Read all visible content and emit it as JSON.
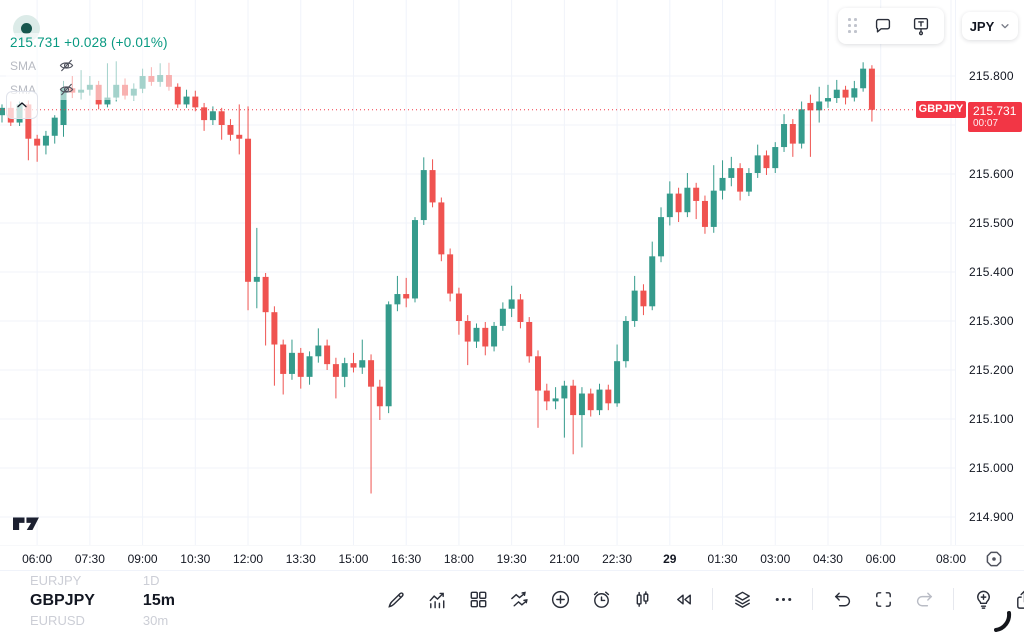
{
  "header": {
    "status_indicator": "market-open",
    "legend": {
      "price": "215.731",
      "change": "+0.028",
      "change_pct": "(+0.01%)",
      "price_color": "#089981",
      "indicators": [
        {
          "label": "SMA",
          "hidden": true
        },
        {
          "label": "SMA",
          "hidden": true
        }
      ]
    },
    "floating_toolbar": {
      "buttons": [
        "drag-handle",
        "comment",
        "text-note"
      ]
    },
    "currency_selector": {
      "value": "JPY"
    }
  },
  "chart_data": {
    "type": "candlestick",
    "symbol": "GBPJPY",
    "interval": "15m",
    "last_price": 215.731,
    "countdown": "00:07",
    "colors": {
      "up": "#359b8c",
      "down": "#ef5350",
      "price_line": "#f23645",
      "grid": "#f0f3fa"
    },
    "price_axis": {
      "min": 214.9,
      "max": 215.8,
      "step": 0.1,
      "levels": [
        215.8,
        215.7,
        215.6,
        215.5,
        215.4,
        215.3,
        215.2,
        215.1,
        215.0,
        214.9
      ],
      "labels": [
        {
          "v": 215.8,
          "t": "215.800"
        },
        {
          "v": 215.6,
          "t": "215.600"
        },
        {
          "v": 215.5,
          "t": "215.500"
        },
        {
          "v": 215.4,
          "t": "215.400"
        },
        {
          "v": 215.3,
          "t": "215.300"
        },
        {
          "v": 215.2,
          "t": "215.200"
        },
        {
          "v": 215.1,
          "t": "215.100"
        },
        {
          "v": 215.0,
          "t": "215.000"
        },
        {
          "v": 214.9,
          "t": "214.900"
        }
      ]
    },
    "time_axis": {
      "start_time": "05:00",
      "step_minutes": 15,
      "ticks": [
        {
          "i": 4,
          "label": "06:00"
        },
        {
          "i": 10,
          "label": "07:30"
        },
        {
          "i": 16,
          "label": "09:00"
        },
        {
          "i": 22,
          "label": "10:30"
        },
        {
          "i": 28,
          "label": "12:00"
        },
        {
          "i": 34,
          "label": "13:30"
        },
        {
          "i": 40,
          "label": "15:00"
        },
        {
          "i": 46,
          "label": "16:30"
        },
        {
          "i": 52,
          "label": "18:00"
        },
        {
          "i": 58,
          "label": "19:30"
        },
        {
          "i": 64,
          "label": "21:00"
        },
        {
          "i": 70,
          "label": "22:30"
        },
        {
          "i": 76,
          "label": "29",
          "bold": true
        },
        {
          "i": 82,
          "label": "01:30"
        },
        {
          "i": 88,
          "label": "03:00"
        },
        {
          "i": 94,
          "label": "04:30"
        },
        {
          "i": 100,
          "label": "06:00"
        },
        {
          "i": 108,
          "label": "08:00"
        }
      ]
    },
    "candles_format": [
      "open",
      "high",
      "low",
      "close"
    ],
    "candles": [
      [
        215.72,
        215.742,
        215.705,
        215.735
      ],
      [
        215.735,
        215.748,
        215.698,
        215.705
      ],
      [
        215.705,
        215.748,
        215.698,
        215.742
      ],
      [
        215.742,
        215.75,
        215.628,
        215.672
      ],
      [
        215.672,
        215.68,
        215.625,
        215.658
      ],
      [
        215.658,
        215.688,
        215.64,
        215.678
      ],
      [
        215.678,
        215.72,
        215.662,
        215.715
      ],
      [
        215.7,
        215.79,
        215.676,
        215.775
      ],
      [
        215.775,
        215.8,
        215.755,
        215.766
      ],
      [
        215.766,
        215.812,
        215.752,
        215.772
      ],
      [
        215.772,
        215.8,
        215.76,
        215.782
      ],
      [
        215.782,
        215.79,
        215.732,
        215.742
      ],
      [
        215.742,
        215.826,
        215.736,
        215.756
      ],
      [
        215.756,
        215.83,
        215.748,
        215.782
      ],
      [
        215.782,
        215.795,
        215.752,
        215.76
      ],
      [
        215.76,
        215.785,
        215.75,
        215.774
      ],
      [
        215.774,
        215.815,
        215.765,
        215.8
      ],
      [
        215.8,
        215.818,
        215.78,
        215.788
      ],
      [
        215.788,
        215.826,
        215.778,
        215.802
      ],
      [
        215.802,
        215.827,
        215.77,
        215.778
      ],
      [
        215.778,
        215.785,
        215.735,
        215.742
      ],
      [
        215.742,
        215.772,
        215.735,
        215.758
      ],
      [
        215.758,
        215.77,
        215.728,
        215.736
      ],
      [
        215.736,
        215.745,
        215.688,
        215.71
      ],
      [
        215.71,
        215.738,
        215.7,
        215.728
      ],
      [
        215.728,
        215.735,
        215.67,
        215.7
      ],
      [
        215.7,
        215.712,
        215.668,
        215.68
      ],
      [
        215.68,
        215.742,
        215.64,
        215.672
      ],
      [
        215.672,
        215.738,
        215.322,
        215.38
      ],
      [
        215.38,
        215.49,
        215.326,
        215.39
      ],
      [
        215.39,
        215.398,
        215.25,
        215.318
      ],
      [
        215.318,
        215.33,
        215.168,
        215.252
      ],
      [
        215.252,
        215.262,
        215.15,
        215.192
      ],
      [
        215.192,
        215.262,
        215.18,
        215.235
      ],
      [
        215.235,
        215.245,
        215.162,
        215.186
      ],
      [
        215.186,
        215.238,
        215.17,
        215.228
      ],
      [
        215.228,
        215.285,
        215.215,
        215.25
      ],
      [
        215.25,
        215.262,
        215.2,
        215.212
      ],
      [
        215.212,
        215.225,
        215.142,
        215.186
      ],
      [
        215.186,
        215.225,
        215.165,
        215.214
      ],
      [
        215.214,
        215.235,
        215.195,
        215.205
      ],
      [
        215.205,
        215.262,
        215.192,
        215.22
      ],
      [
        215.22,
        215.232,
        214.948,
        215.166
      ],
      [
        215.166,
        215.18,
        215.098,
        215.126
      ],
      [
        215.126,
        215.34,
        215.112,
        215.334
      ],
      [
        215.334,
        215.392,
        215.32,
        215.355
      ],
      [
        215.355,
        215.388,
        215.328,
        215.346
      ],
      [
        215.346,
        215.512,
        215.338,
        215.506
      ],
      [
        215.506,
        215.634,
        215.496,
        215.608
      ],
      [
        215.608,
        215.63,
        215.532,
        215.542
      ],
      [
        215.542,
        215.552,
        215.422,
        215.436
      ],
      [
        215.436,
        215.448,
        215.34,
        215.356
      ],
      [
        215.356,
        215.368,
        215.272,
        215.3
      ],
      [
        215.3,
        215.312,
        215.21,
        215.258
      ],
      [
        215.258,
        215.295,
        215.245,
        215.286
      ],
      [
        215.286,
        215.298,
        215.23,
        215.248
      ],
      [
        215.248,
        215.298,
        215.238,
        215.29
      ],
      [
        215.29,
        215.338,
        215.28,
        215.325
      ],
      [
        215.325,
        215.372,
        215.308,
        215.344
      ],
      [
        215.344,
        215.355,
        215.285,
        215.298
      ],
      [
        215.298,
        215.308,
        215.215,
        215.228
      ],
      [
        215.228,
        215.24,
        215.082,
        215.158
      ],
      [
        215.158,
        215.172,
        215.118,
        215.136
      ],
      [
        215.136,
        215.165,
        215.12,
        215.142
      ],
      [
        215.142,
        215.178,
        215.062,
        215.168
      ],
      [
        215.168,
        215.18,
        215.028,
        215.108
      ],
      [
        215.108,
        215.165,
        215.042,
        215.152
      ],
      [
        215.152,
        215.162,
        215.105,
        215.118
      ],
      [
        215.118,
        215.172,
        215.108,
        215.16
      ],
      [
        215.16,
        215.17,
        215.118,
        215.132
      ],
      [
        215.132,
        215.252,
        215.125,
        215.218
      ],
      [
        215.218,
        215.31,
        215.205,
        215.3
      ],
      [
        215.3,
        215.392,
        215.288,
        215.362
      ],
      [
        215.362,
        215.375,
        215.312,
        215.33
      ],
      [
        215.33,
        215.462,
        215.322,
        215.432
      ],
      [
        215.432,
        215.532,
        215.42,
        215.512
      ],
      [
        215.512,
        215.585,
        215.495,
        215.56
      ],
      [
        215.56,
        215.572,
        215.502,
        215.522
      ],
      [
        215.522,
        215.602,
        215.512,
        215.572
      ],
      [
        215.572,
        215.582,
        215.508,
        215.545
      ],
      [
        215.545,
        215.556,
        215.478,
        215.492
      ],
      [
        215.492,
        215.618,
        215.48,
        215.566
      ],
      [
        215.566,
        215.628,
        215.548,
        215.592
      ],
      [
        215.592,
        215.635,
        215.575,
        215.612
      ],
      [
        215.612,
        215.622,
        215.546,
        215.564
      ],
      [
        215.564,
        215.612,
        215.555,
        215.602
      ],
      [
        215.602,
        215.66,
        215.592,
        215.638
      ],
      [
        215.638,
        215.648,
        215.598,
        215.612
      ],
      [
        215.612,
        215.665,
        215.602,
        215.655
      ],
      [
        215.655,
        215.722,
        215.645,
        215.702
      ],
      [
        215.702,
        215.712,
        215.635,
        215.662
      ],
      [
        215.662,
        215.748,
        215.652,
        215.732
      ],
      [
        215.745,
        215.762,
        215.635,
        215.73
      ],
      [
        215.73,
        215.778,
        215.705,
        215.748
      ],
      [
        215.748,
        215.782,
        215.735,
        215.755
      ],
      [
        215.755,
        215.792,
        215.745,
        215.772
      ],
      [
        215.772,
        215.78,
        215.742,
        215.756
      ],
      [
        215.756,
        215.79,
        215.748,
        215.775
      ],
      [
        215.775,
        215.828,
        215.768,
        215.815
      ],
      [
        215.815,
        215.822,
        215.707,
        215.731
      ]
    ]
  },
  "price_tag": {
    "symbol": "GBPJPY",
    "price": "215.731",
    "countdown": "00:07"
  },
  "bottom_bar": {
    "symbol_picker": {
      "items": [
        "EURJPY",
        "GBPJPY",
        "EURUSD"
      ],
      "selected": "GBPJPY"
    },
    "interval_picker": {
      "items": [
        "1D",
        "15m",
        "30m"
      ],
      "selected": "15m"
    },
    "tools": [
      {
        "name": "draw"
      },
      {
        "name": "indicators"
      },
      {
        "name": "layouts"
      },
      {
        "name": "compare"
      },
      {
        "name": "add"
      },
      {
        "name": "alert"
      },
      {
        "name": "bar-style"
      },
      {
        "name": "replay"
      },
      {
        "name": "separator"
      },
      {
        "name": "objects"
      },
      {
        "name": "more"
      },
      {
        "name": "separator"
      },
      {
        "name": "undo"
      },
      {
        "name": "fullscreen"
      },
      {
        "name": "redo",
        "disabled": true
      },
      {
        "name": "separator"
      },
      {
        "name": "ideas"
      },
      {
        "name": "share"
      }
    ]
  }
}
